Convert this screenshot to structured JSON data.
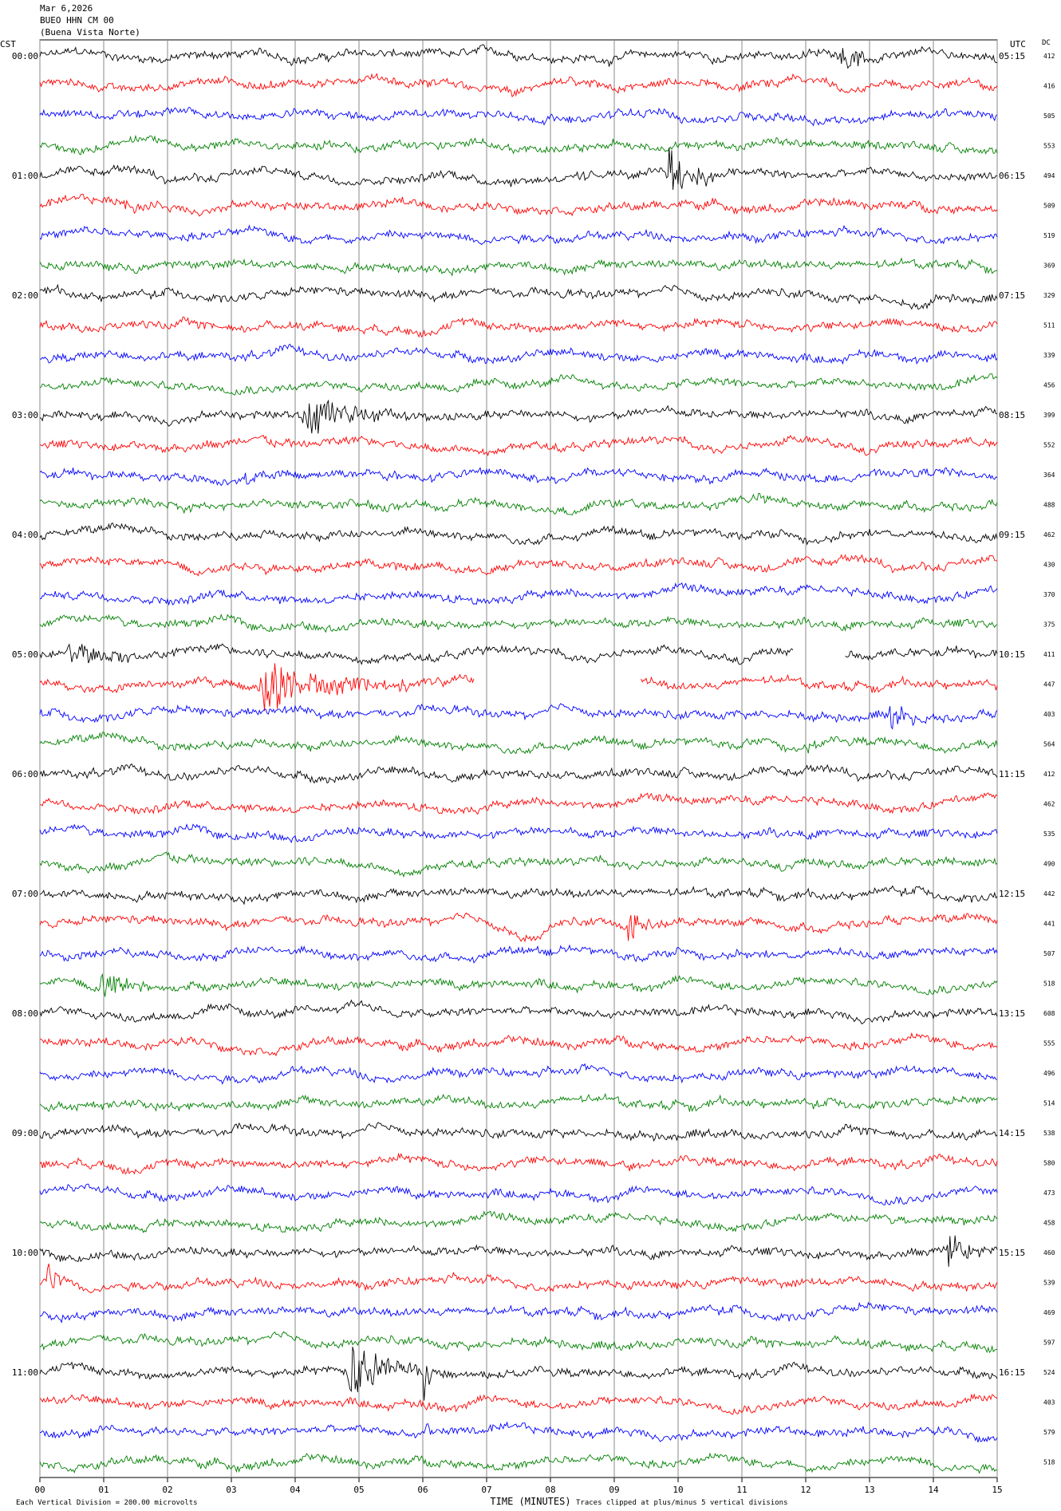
{
  "header": {
    "date": "Mar 6,2026",
    "station": "BUEO HHN CM 00",
    "location": "(Buena Vista Norte)"
  },
  "axes": {
    "left_tz": "CST",
    "right_tz": "UTC",
    "dc_label": "DC",
    "x_title": "TIME (MINUTES)",
    "footer_left": "Each Vertical Division =  200.00 microvolts",
    "footer_right": "Traces clipped at plus/minus 5 vertical divisions"
  },
  "colors": [
    "#000000",
    "#ff0000",
    "#0000ff",
    "#008000"
  ],
  "chart_data": {
    "type": "line",
    "title": "BUEO HHN CM 00 (Buena Vista Norte) Mar 6,2026",
    "xlabel": "TIME (MINUTES)",
    "xlim": [
      0,
      15
    ],
    "x_ticks": [
      "00",
      "01",
      "02",
      "03",
      "04",
      "05",
      "06",
      "07",
      "08",
      "09",
      "10",
      "11",
      "12",
      "13",
      "14",
      "15"
    ],
    "rows": 48,
    "minutes_per_row": 15,
    "left_hour_labels": [
      "00:00",
      "01:00",
      "02:00",
      "03:00",
      "04:00",
      "05:00",
      "06:00",
      "07:00",
      "08:00",
      "09:00",
      "10:00",
      "11:00"
    ],
    "right_hour_labels": [
      "05:15",
      "06:15",
      "07:15",
      "08:15",
      "09:15",
      "10:15",
      "11:15",
      "12:15",
      "13:15",
      "14:15",
      "15:15",
      "16:15"
    ],
    "dc_values": [
      412,
      416,
      505,
      553,
      494,
      509,
      519,
      369,
      329,
      511,
      339,
      456,
      399,
      552,
      364,
      488,
      462,
      430,
      370,
      375,
      411,
      447,
      403,
      564,
      412,
      462,
      535,
      490,
      442,
      441,
      507,
      518,
      608,
      555,
      496,
      514,
      538,
      580,
      473,
      458,
      460,
      539,
      469,
      597,
      524,
      403,
      579,
      518
    ],
    "events": [
      {
        "row": 0,
        "start_min": 12.5,
        "end_min": 14.0,
        "amp": 1.0
      },
      {
        "row": 1,
        "start_min": 4.0,
        "end_min": 4.3,
        "amp": 0.5
      },
      {
        "row": 4,
        "start_min": 8.4,
        "end_min": 8.9,
        "amp": 0.5
      },
      {
        "row": 4,
        "start_min": 9.8,
        "end_min": 11.0,
        "amp": 2.2
      },
      {
        "row": 5,
        "start_min": 1.3,
        "end_min": 1.9,
        "amp": 0.6
      },
      {
        "row": 12,
        "start_min": 4.1,
        "end_min": 6.1,
        "amp": 1.8
      },
      {
        "row": 13,
        "start_min": 5.3,
        "end_min": 5.7,
        "amp": 0.6
      },
      {
        "row": 14,
        "start_min": 3.2,
        "end_min": 3.8,
        "amp": 0.8
      },
      {
        "row": 20,
        "start_min": 0.4,
        "end_min": 2.8,
        "amp": 1.0
      },
      {
        "row": 21,
        "start_min": 3.4,
        "end_min": 6.4,
        "amp": 2.4
      },
      {
        "row": 22,
        "start_min": 13.3,
        "end_min": 14.0,
        "amp": 2.0
      },
      {
        "row": 23,
        "start_min": 11.0,
        "end_min": 11.4,
        "amp": 0.5
      },
      {
        "row": 23,
        "start_min": 12.0,
        "end_min": 12.3,
        "amp": 0.5
      },
      {
        "row": 24,
        "start_min": 5.9,
        "end_min": 6.0,
        "amp": 0.6
      },
      {
        "row": 27,
        "start_min": 14.0,
        "end_min": 14.5,
        "amp": 0.5
      },
      {
        "row": 29,
        "start_min": 9.2,
        "end_min": 9.9,
        "amp": 1.6
      },
      {
        "row": 31,
        "start_min": 0.9,
        "end_min": 2.0,
        "amp": 1.4
      },
      {
        "row": 37,
        "start_min": 9.1,
        "end_min": 9.5,
        "amp": 0.6
      },
      {
        "row": 39,
        "start_min": 1.6,
        "end_min": 1.9,
        "amp": 0.5
      },
      {
        "row": 40,
        "start_min": 14.2,
        "end_min": 15.0,
        "amp": 2.2
      },
      {
        "row": 41,
        "start_min": 0.1,
        "end_min": 0.6,
        "amp": 2.0
      },
      {
        "row": 44,
        "start_min": 4.8,
        "end_min": 6.5,
        "amp": 2.5
      },
      {
        "row": 44,
        "start_min": 6.0,
        "end_min": 6.3,
        "amp": 3.0
      },
      {
        "row": 45,
        "start_min": 6.0,
        "end_min": 6.2,
        "amp": 3.0
      },
      {
        "row": 46,
        "start_min": 6.0,
        "end_min": 6.2,
        "amp": 3.0
      }
    ],
    "gaps": [
      {
        "row": 20,
        "start_min": 11.8,
        "end_min": 12.6
      },
      {
        "row": 21,
        "start_min": 6.8,
        "end_min": 9.4
      }
    ],
    "dips": [
      {
        "row": 1,
        "at_min": 7.4,
        "depth": 0.5
      },
      {
        "row": 8,
        "at_min": 13.7,
        "depth": 0.9
      },
      {
        "row": 14,
        "at_min": 2.8,
        "depth": 0.6
      },
      {
        "row": 29,
        "at_min": 7.7,
        "depth": 1.1
      },
      {
        "row": 32,
        "at_min": 5.0,
        "depth": -0.6
      }
    ],
    "trace_noise": 0.22,
    "grid": "vertical-minute-lines"
  }
}
